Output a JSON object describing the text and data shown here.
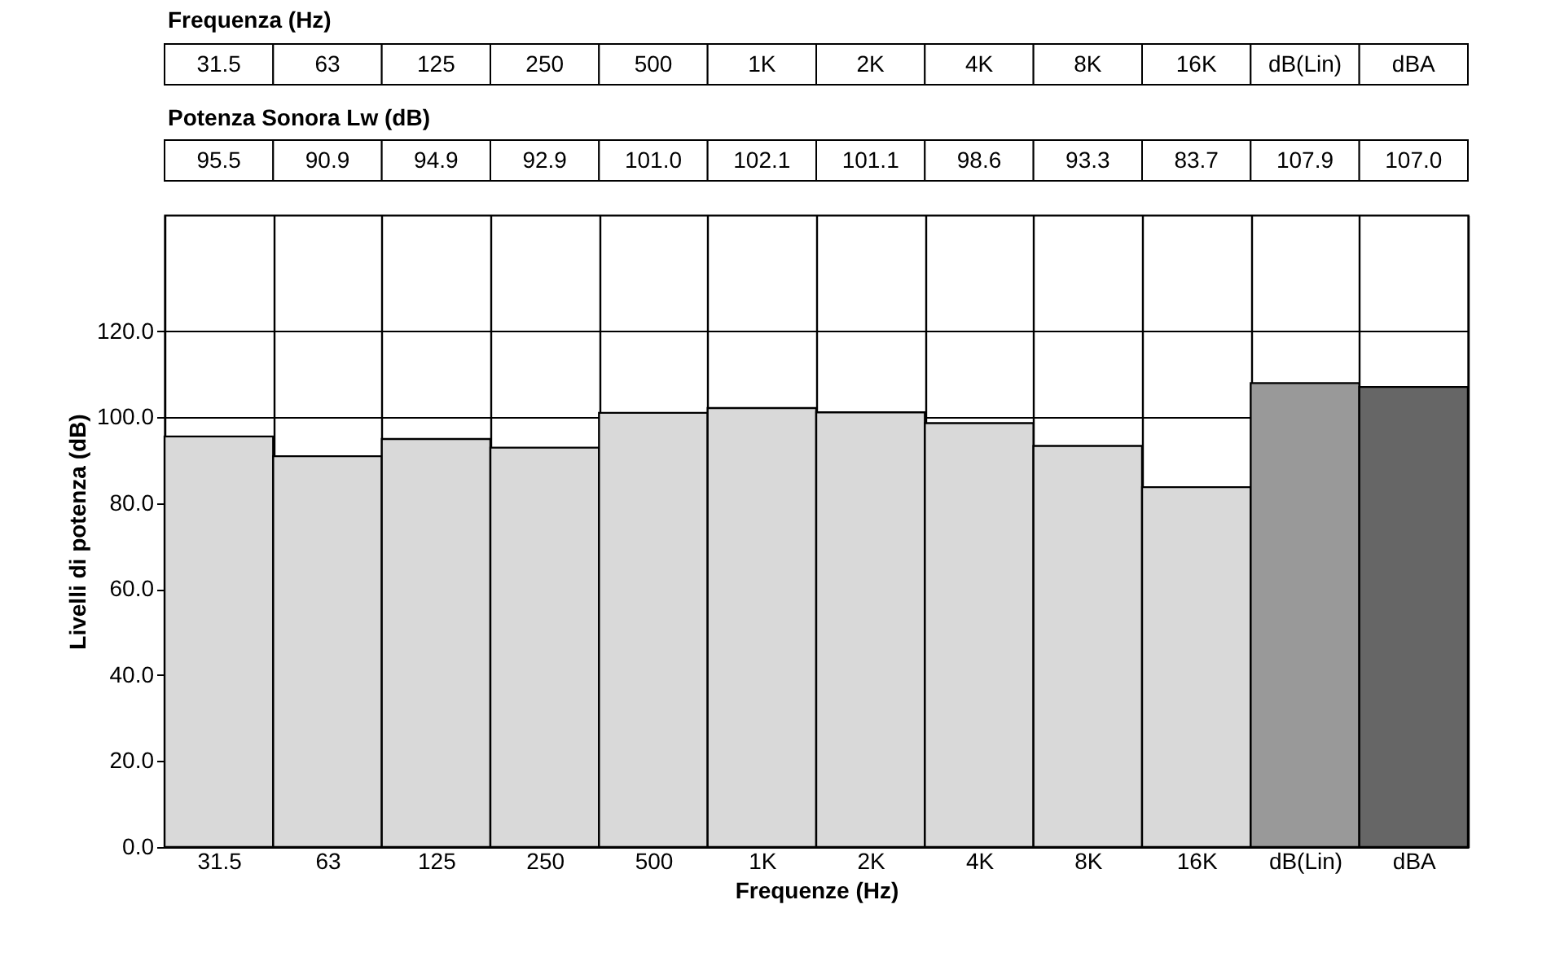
{
  "chart_data": {
    "type": "bar",
    "xlabel": "Frequenze (Hz)",
    "ylabel": "Livelli di potenza (dB)",
    "annotations": [
      "Frequenza (Hz)",
      "Potenza Sonora Lw (dB)"
    ],
    "categories": [
      "31.5",
      "63",
      "125",
      "250",
      "500",
      "1K",
      "2K",
      "4K",
      "8K",
      "16K",
      "dB(Lin)",
      "dBA"
    ],
    "values": [
      95.5,
      90.9,
      94.9,
      92.9,
      101.0,
      102.1,
      101.1,
      98.6,
      93.3,
      83.7,
      107.9,
      107.0
    ],
    "colors": [
      "#d9d9d9",
      "#d9d9d9",
      "#d9d9d9",
      "#d9d9d9",
      "#d9d9d9",
      "#d9d9d9",
      "#d9d9d9",
      "#d9d9d9",
      "#d9d9d9",
      "#d9d9d9",
      "#999999",
      "#666666"
    ],
    "value_labels": [
      "95.5",
      "90.9",
      "94.9",
      "92.9",
      "101.0",
      "102.1",
      "101.1",
      "98.6",
      "93.3",
      "83.7",
      "107.9",
      "107.0"
    ],
    "ylim": [
      0,
      147
    ],
    "yticks": [
      {
        "value": 0,
        "label": "0.0"
      },
      {
        "value": 20,
        "label": "20.0"
      },
      {
        "value": 40,
        "label": "40.0"
      },
      {
        "value": 60,
        "label": "60.0"
      },
      {
        "value": 80,
        "label": "80.0"
      },
      {
        "value": 100,
        "label": "100.0"
      },
      {
        "value": 120,
        "label": "120.0"
      }
    ],
    "grid": true,
    "legend": false
  }
}
